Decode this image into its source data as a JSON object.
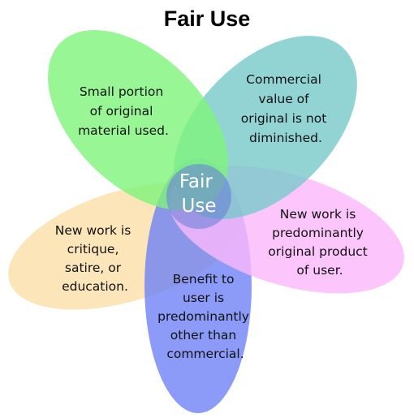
{
  "title": "Fair Use",
  "center": {
    "lines": [
      "Fair",
      "Use"
    ],
    "color": "#6a80d8"
  },
  "petals": [
    {
      "id": "small-portion",
      "color": "#7ef47a",
      "lines": [
        "Small portion",
        "of original",
        "material used."
      ]
    },
    {
      "id": "commercial-value",
      "color": "#77c9c9",
      "lines": [
        "Commercial",
        "value of",
        "original is not",
        "diminished."
      ]
    },
    {
      "id": "predominantly-original",
      "color": "#fbb8fb",
      "lines": [
        "New work is",
        "predominantly",
        "original product",
        "of user."
      ]
    },
    {
      "id": "benefit-to-user",
      "color": "#6f82f5",
      "lines": [
        "Benefit to",
        "user is",
        "predominantly",
        "other than",
        "commercial."
      ]
    },
    {
      "id": "critique-satire",
      "color": "#fbe0a8",
      "lines": [
        "New work is",
        "critique,",
        "satire, or",
        "education."
      ]
    }
  ]
}
